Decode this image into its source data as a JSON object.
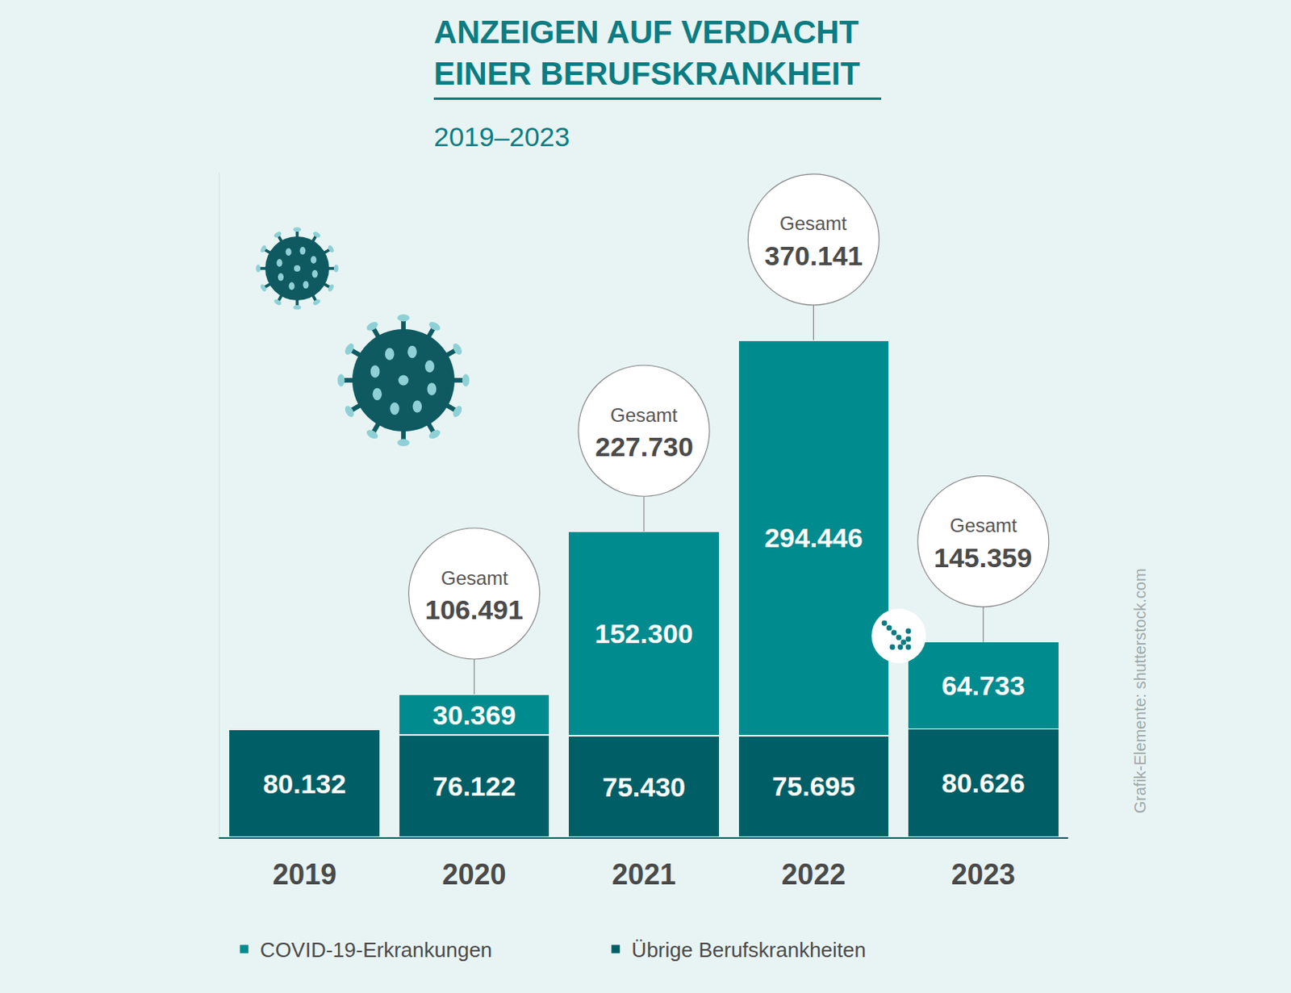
{
  "chart_data": {
    "type": "bar",
    "title": "ANZEIGEN AUF VERDACHT EINER BERUFSKRANKHEIT",
    "subtitle": "2019–2023",
    "source": "Grafik-Elemente: shutterstock.com",
    "categories": [
      "2019",
      "2020",
      "2021",
      "2022",
      "2023"
    ],
    "series": [
      {
        "name": "Übrige Berufskrankheiten",
        "color": "#005f66",
        "values": [
          80132,
          76122,
          75430,
          75695,
          80626
        ],
        "value_labels": [
          "80.132",
          "76.122",
          "75.430",
          "75.695",
          "80.626"
        ]
      },
      {
        "name": "COVID-19-Erkrankungen",
        "color": "#008b8e",
        "values": [
          null,
          30369,
          152300,
          294446,
          64733
        ],
        "value_labels": [
          null,
          "30.369",
          "152.300",
          "294.446",
          "64.733"
        ]
      }
    ],
    "totals": {
      "label": "Gesamt",
      "values": [
        null,
        106491,
        227730,
        370141,
        145359
      ],
      "value_labels": [
        null,
        "106.491",
        "227.730",
        "370.141",
        "145.359"
      ]
    },
    "stacked": true,
    "data_labels": true,
    "legend": "bottom",
    "tick_labels": "x",
    "grid": false,
    "ylim": [
      0,
      495000
    ],
    "yticks": []
  }
}
